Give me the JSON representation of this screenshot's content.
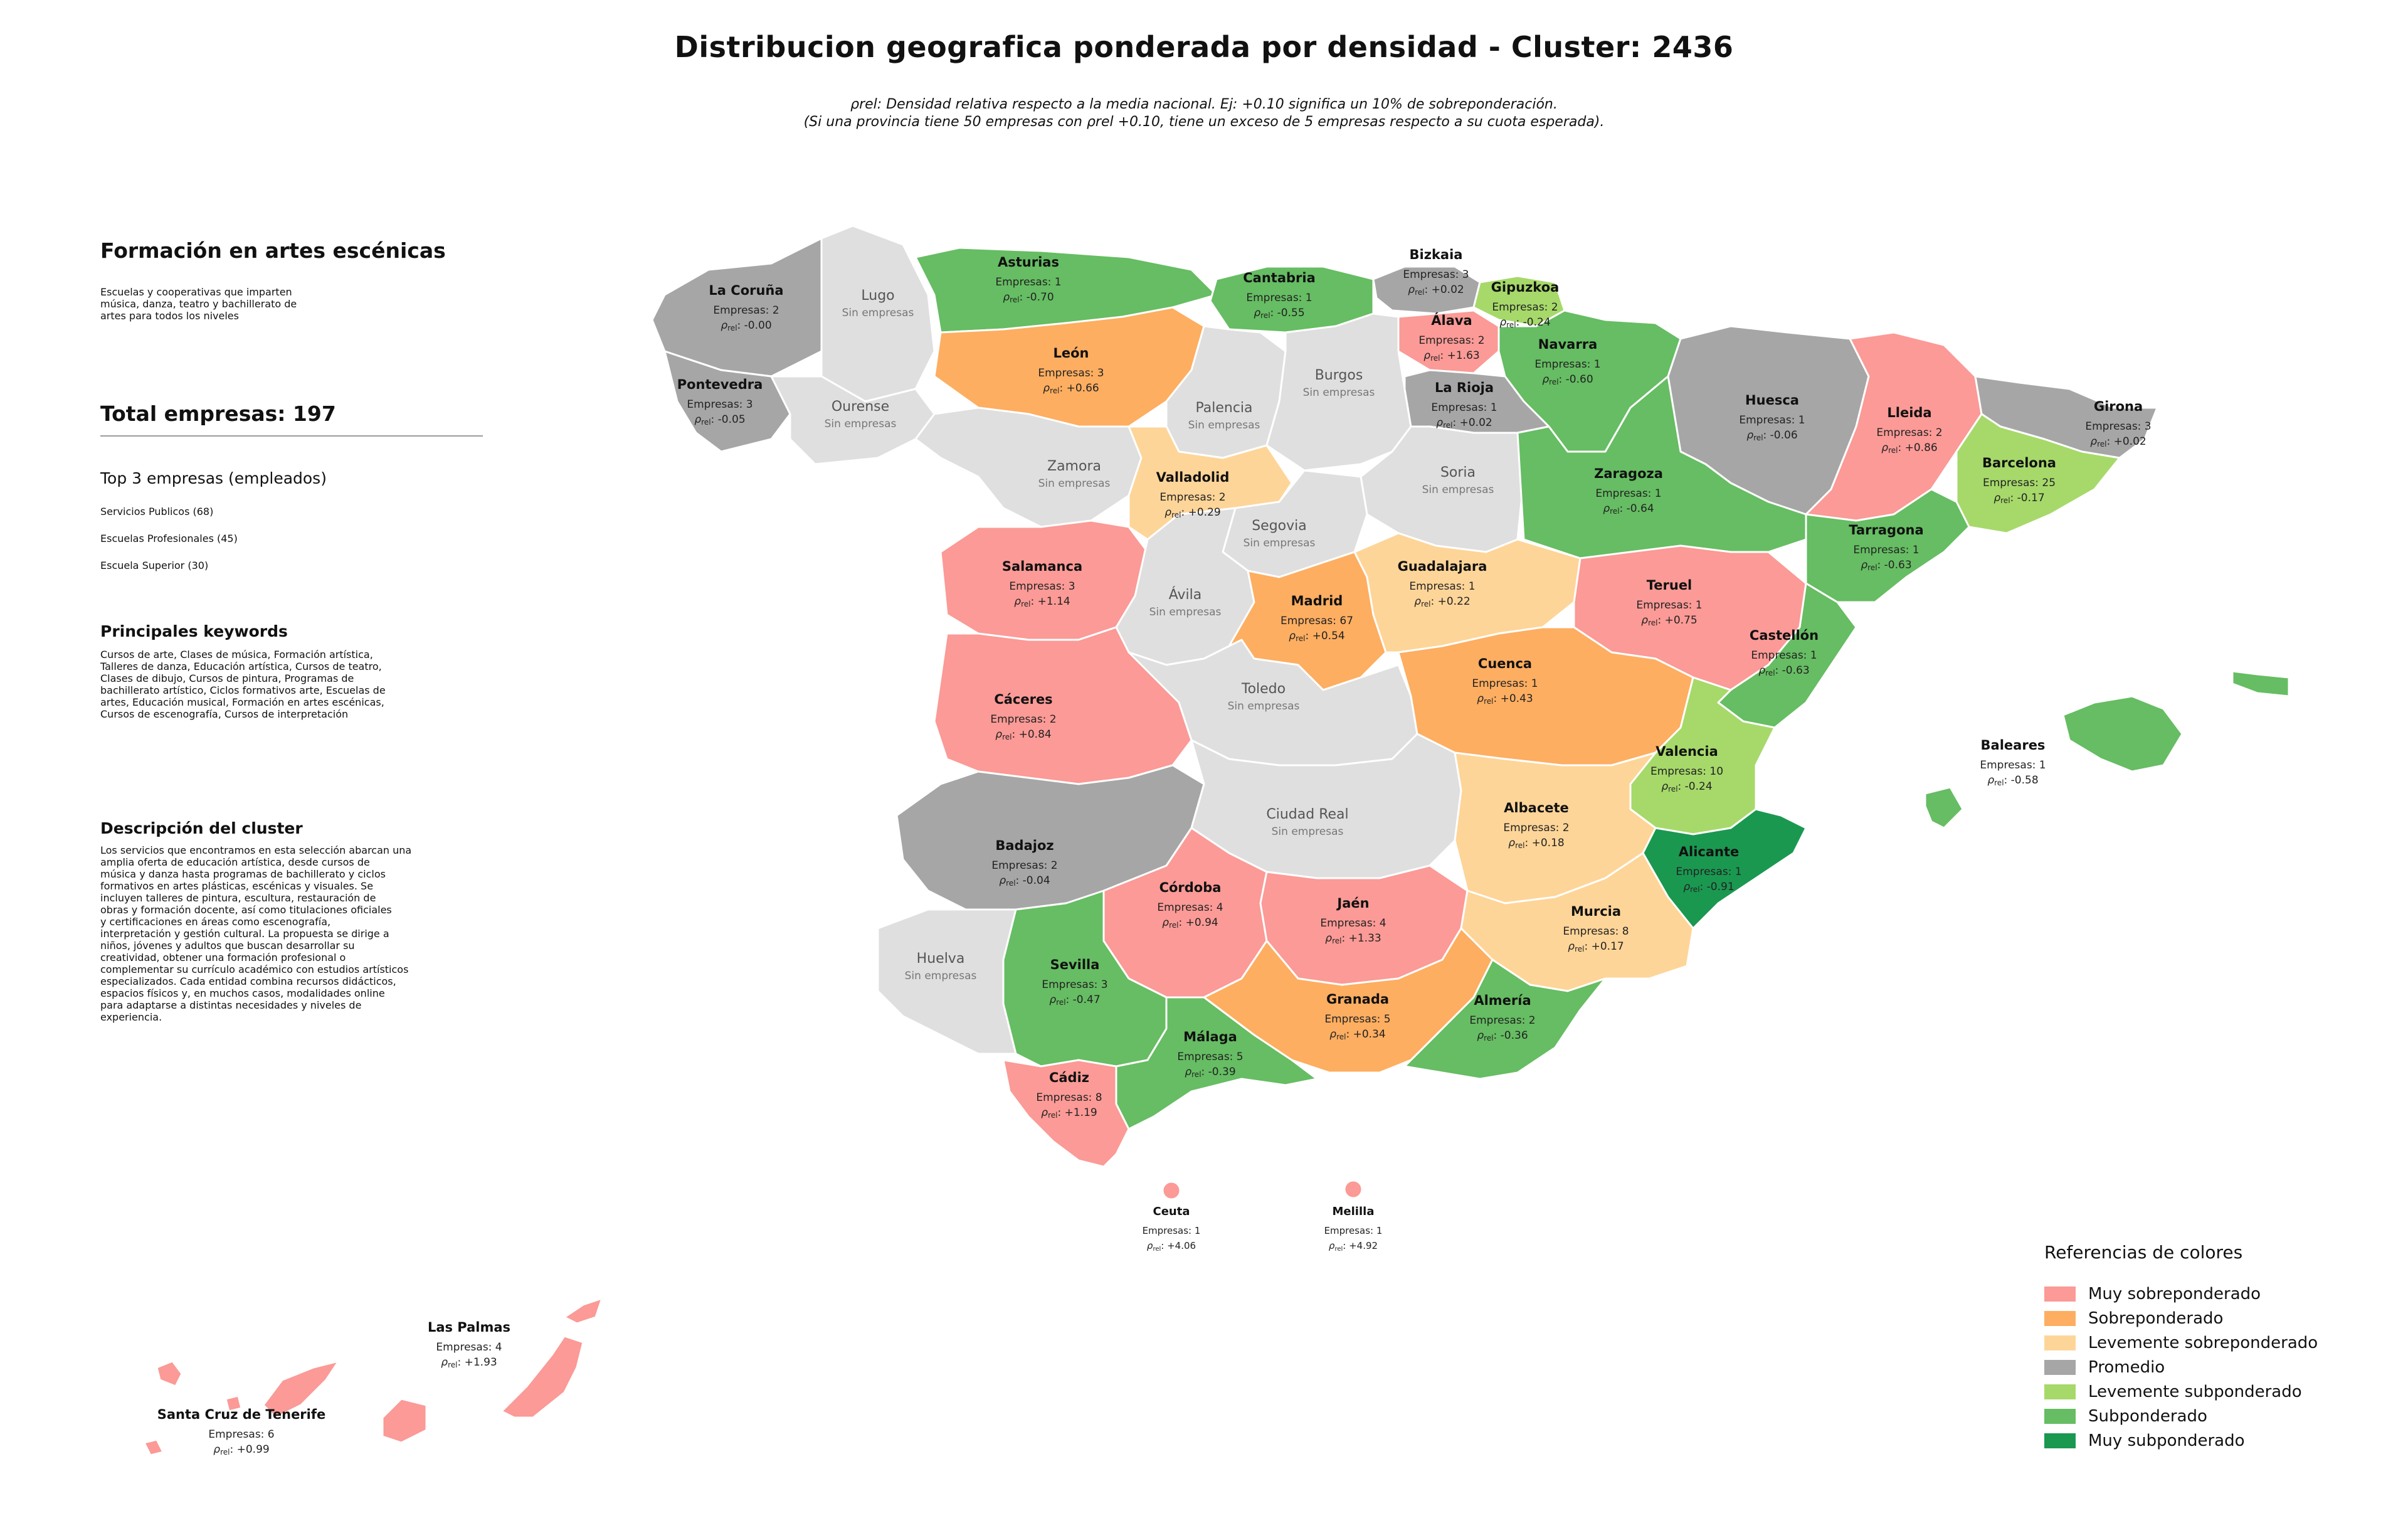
{
  "title": "Distribucion geografica ponderada por densidad - Cluster: 2436",
  "subtitle": {
    "line1": "ρrel: Densidad relativa respecto a la media nacional. Ej: +0.10 significa un 10% de sobreponderación.",
    "line2": "(Si una provincia tiene 50 empresas con ρrel +0.10, tiene un exceso de 5 empresas respecto a su cuota esperada)."
  },
  "sidebar": {
    "heading": "Formación en artes escénicas",
    "description": [
      "Escuelas y cooperativas que imparten",
      "música, danza, teatro y bachillerato de",
      "artes para todos los niveles"
    ],
    "total": "Total empresas: 197",
    "top_heading": "Top 3 empresas (empleados)",
    "top": [
      "Servicios Publicos (68)",
      "Escuelas Profesionales (45)",
      "Escuela Superior (30)"
    ],
    "keywords_heading": "Principales keywords",
    "keywords": [
      "Cursos de arte, Clases de música, Formación artística,",
      "Talleres de danza, Educación artística, Cursos de teatro,",
      "Clases de dibujo, Cursos de pintura, Programas de",
      "bachillerato artístico, Ciclos formativos arte, Escuelas de",
      "artes, Educación musical, Formación en artes escénicas,",
      "Cursos de escenografía, Cursos de interpretación"
    ],
    "cluster_heading": "Descripción del cluster",
    "cluster_text": [
      "Los servicios que encontramos en esta selección abarcan una",
      "amplia oferta de educación artística, desde cursos de",
      "música y danza hasta programas de bachillerato y ciclos",
      "formativos en artes plásticas, escénicas y visuales. Se",
      "incluyen talleres de pintura, escultura, restauración de",
      "obras y formación docente, así como titulaciones oficiales",
      "y certificaciones en áreas como escenografía,",
      "interpretación y gestión cultural. La propuesta se dirige a",
      "niños, jóvenes y adultos que buscan desarrollar su",
      "creatividad, obtener una formación profesional o",
      "complementar su currículo académico con estudios artísticos",
      "especializados. Cada entidad combina recursos didácticos,",
      "espacios físicos y, en muchos casos, modalidades online",
      "para adaptarse a distintas necesidades y niveles de",
      "experiencia."
    ]
  },
  "labels": {
    "companies_prefix": "Empresas: ",
    "no_companies": "Sin empresas",
    "rho": "ρ",
    "rho_sub": "rel"
  },
  "colors": {
    "muy_sobre": "#fb9a96",
    "sobre": "#fdae61",
    "lev_sobre": "#fed598",
    "promedio": "#a6a6a6",
    "lev_sub": "#a6d96a",
    "sub": "#66bd63",
    "muy_sub": "#1a9850",
    "none": "#dfdfdf",
    "border": "#ffffff"
  },
  "legend": {
    "title": "Referencias de colores",
    "items": [
      {
        "label": "Muy sobreponderado",
        "color": "#fb9a96"
      },
      {
        "label": "Sobreponderado",
        "color": "#fdae61"
      },
      {
        "label": "Levemente sobreponderado",
        "color": "#fed598"
      },
      {
        "label": "Promedio",
        "color": "#a6a6a6"
      },
      {
        "label": "Levemente subponderado",
        "color": "#a6d96a"
      },
      {
        "label": "Subponderado",
        "color": "#66bd63"
      },
      {
        "label": "Muy subponderado",
        "color": "#1a9850"
      }
    ]
  },
  "provinces": [
    {
      "name": "La Coruña",
      "companies": 2,
      "rho": "-0.00",
      "cat": "promedio"
    },
    {
      "name": "Lugo",
      "companies": null,
      "rho": null,
      "cat": "none"
    },
    {
      "name": "Asturias",
      "companies": 1,
      "rho": "-0.70",
      "cat": "sub"
    },
    {
      "name": "Cantabria",
      "companies": 1,
      "rho": "-0.55",
      "cat": "sub"
    },
    {
      "name": "Bizkaia",
      "companies": 3,
      "rho": "+0.02",
      "cat": "promedio"
    },
    {
      "name": "Gipuzkoa",
      "companies": 2,
      "rho": "-0.24",
      "cat": "lev_sub"
    },
    {
      "name": "Álava",
      "companies": 2,
      "rho": "+1.63",
      "cat": "muy_sobre"
    },
    {
      "name": "Navarra",
      "companies": 1,
      "rho": "-0.60",
      "cat": "sub"
    },
    {
      "name": "Pontevedra",
      "companies": 3,
      "rho": "-0.05",
      "cat": "promedio"
    },
    {
      "name": "Ourense",
      "companies": null,
      "rho": null,
      "cat": "none"
    },
    {
      "name": "León",
      "companies": 3,
      "rho": "+0.66",
      "cat": "sobre"
    },
    {
      "name": "Palencia",
      "companies": null,
      "rho": null,
      "cat": "none"
    },
    {
      "name": "Burgos",
      "companies": null,
      "rho": null,
      "cat": "none"
    },
    {
      "name": "La Rioja",
      "companies": 1,
      "rho": "+0.02",
      "cat": "promedio"
    },
    {
      "name": "Huesca",
      "companies": 1,
      "rho": "-0.06",
      "cat": "promedio"
    },
    {
      "name": "Lleida",
      "companies": 2,
      "rho": "+0.86",
      "cat": "muy_sobre"
    },
    {
      "name": "Girona",
      "companies": 3,
      "rho": "+0.02",
      "cat": "promedio"
    },
    {
      "name": "Barcelona",
      "companies": 25,
      "rho": "-0.17",
      "cat": "lev_sub"
    },
    {
      "name": "Zamora",
      "companies": null,
      "rho": null,
      "cat": "none"
    },
    {
      "name": "Valladolid",
      "companies": 2,
      "rho": "+0.29",
      "cat": "lev_sobre"
    },
    {
      "name": "Soria",
      "companies": null,
      "rho": null,
      "cat": "none"
    },
    {
      "name": "Zaragoza",
      "companies": 1,
      "rho": "-0.64",
      "cat": "sub"
    },
    {
      "name": "Tarragona",
      "companies": 1,
      "rho": "-0.63",
      "cat": "sub"
    },
    {
      "name": "Segovia",
      "companies": null,
      "rho": null,
      "cat": "none"
    },
    {
      "name": "Salamanca",
      "companies": 3,
      "rho": "+1.14",
      "cat": "muy_sobre"
    },
    {
      "name": "Ávila",
      "companies": null,
      "rho": null,
      "cat": "none"
    },
    {
      "name": "Madrid",
      "companies": 67,
      "rho": "+0.54",
      "cat": "sobre"
    },
    {
      "name": "Guadalajara",
      "companies": 1,
      "rho": "+0.22",
      "cat": "lev_sobre"
    },
    {
      "name": "Teruel",
      "companies": 1,
      "rho": "+0.75",
      "cat": "muy_sobre"
    },
    {
      "name": "Castellón",
      "companies": 1,
      "rho": "-0.63",
      "cat": "sub"
    },
    {
      "name": "Cáceres",
      "companies": 2,
      "rho": "+0.84",
      "cat": "muy_sobre"
    },
    {
      "name": "Toledo",
      "companies": null,
      "rho": null,
      "cat": "none"
    },
    {
      "name": "Cuenca",
      "companies": 1,
      "rho": "+0.43",
      "cat": "sobre"
    },
    {
      "name": "Valencia",
      "companies": 10,
      "rho": "-0.24",
      "cat": "lev_sub"
    },
    {
      "name": "Baleares",
      "companies": 1,
      "rho": "-0.58",
      "cat": "sub"
    },
    {
      "name": "Badajoz",
      "companies": 2,
      "rho": "-0.04",
      "cat": "promedio"
    },
    {
      "name": "Ciudad Real",
      "companies": null,
      "rho": null,
      "cat": "none"
    },
    {
      "name": "Albacete",
      "companies": 2,
      "rho": "+0.18",
      "cat": "lev_sobre"
    },
    {
      "name": "Alicante",
      "companies": 1,
      "rho": "-0.91",
      "cat": "muy_sub"
    },
    {
      "name": "Córdoba",
      "companies": 4,
      "rho": "+0.94",
      "cat": "muy_sobre"
    },
    {
      "name": "Jaén",
      "companies": 4,
      "rho": "+1.33",
      "cat": "muy_sobre"
    },
    {
      "name": "Murcia",
      "companies": 8,
      "rho": "+0.17",
      "cat": "lev_sobre"
    },
    {
      "name": "Huelva",
      "companies": null,
      "rho": null,
      "cat": "none"
    },
    {
      "name": "Sevilla",
      "companies": 3,
      "rho": "-0.47",
      "cat": "sub"
    },
    {
      "name": "Granada",
      "companies": 5,
      "rho": "+0.34",
      "cat": "sobre"
    },
    {
      "name": "Almería",
      "companies": 2,
      "rho": "-0.36",
      "cat": "sub"
    },
    {
      "name": "Málaga",
      "companies": 5,
      "rho": "-0.39",
      "cat": "sub"
    },
    {
      "name": "Cádiz",
      "companies": 8,
      "rho": "+1.19",
      "cat": "muy_sobre"
    },
    {
      "name": "Ceuta",
      "companies": 1,
      "rho": "+4.06",
      "cat": "muy_sobre"
    },
    {
      "name": "Melilla",
      "companies": 1,
      "rho": "+4.92",
      "cat": "muy_sobre"
    },
    {
      "name": "Las Palmas",
      "companies": 4,
      "rho": "+1.93",
      "cat": "muy_sobre"
    },
    {
      "name": "Santa Cruz de Tenerife",
      "companies": 6,
      "rho": "+0.99",
      "cat": "muy_sobre"
    }
  ]
}
